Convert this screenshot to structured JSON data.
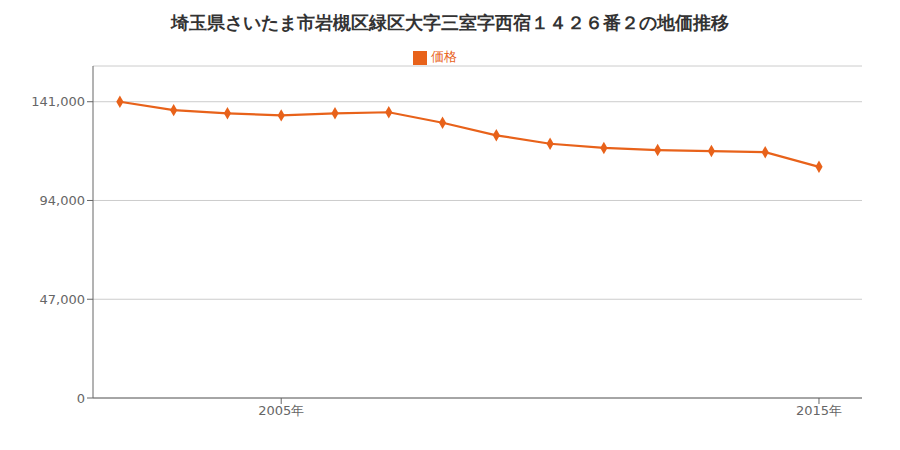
{
  "chart_data": {
    "type": "line",
    "title": "埼玉県さいたま市岩槻区緑区大字三室字西宿１４２６番２の地価推移",
    "x": [
      2002,
      2003,
      2004,
      2005,
      2006,
      2007,
      2008,
      2009,
      2010,
      2011,
      2012,
      2013,
      2014,
      2015
    ],
    "series": [
      {
        "name": "価格",
        "color": "#e8621a",
        "marker": "diamond",
        "values": [
          141000,
          137000,
          135500,
          134500,
          135500,
          136000,
          131000,
          125000,
          121000,
          119000,
          118000,
          117500,
          117000,
          110000
        ]
      }
    ],
    "xlim": [
      2001.5,
      2015.8
    ],
    "xticks": [
      {
        "value": 2005,
        "label": "2005年"
      },
      {
        "value": 2015,
        "label": "2015年"
      }
    ],
    "ylim": [
      0,
      158000
    ],
    "yticks": [
      0,
      {
        "value": 47000,
        "label": "47,000"
      },
      {
        "value": 94000,
        "label": "94,000"
      },
      {
        "value": 141000,
        "label": "141,000"
      }
    ],
    "grid": "y",
    "legend": "top"
  }
}
